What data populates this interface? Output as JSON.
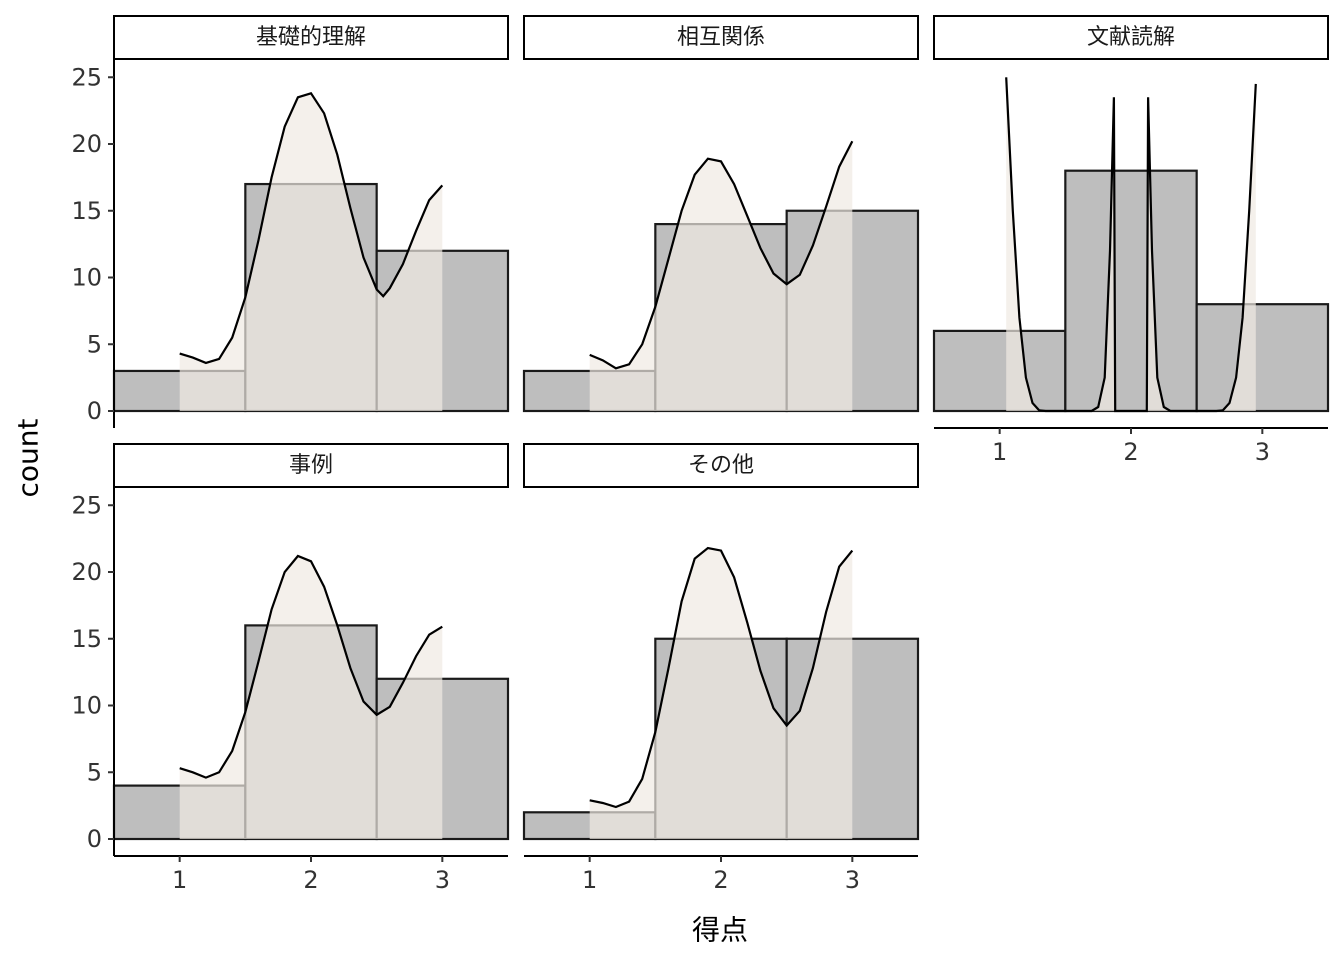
{
  "chart_data": {
    "type": "bar",
    "layout": "faceted histogram with density curves",
    "xlabel": "得点",
    "ylabel": "count",
    "x_breaks": [
      1,
      2,
      3
    ],
    "y_breaks": [
      0,
      5,
      10,
      15,
      20,
      25
    ],
    "xlim": [
      0.5,
      3.5
    ],
    "ylim": [
      0,
      25
    ],
    "colors": {
      "bar_fill": "#bebebe",
      "bar_outline": "#1a1a1a",
      "density_fill": "#efeae2",
      "density_line": "#000000"
    },
    "facets": [
      {
        "label": "基礎的理解",
        "bins": [
          {
            "x": 1,
            "count": 3
          },
          {
            "x": 2,
            "count": 17
          },
          {
            "x": 3,
            "count": 12
          }
        ],
        "density": [
          [
            1.0,
            4.3
          ],
          [
            1.1,
            4.0
          ],
          [
            1.2,
            3.6
          ],
          [
            1.3,
            3.9
          ],
          [
            1.4,
            5.5
          ],
          [
            1.5,
            8.5
          ],
          [
            1.6,
            12.8
          ],
          [
            1.7,
            17.5
          ],
          [
            1.8,
            21.3
          ],
          [
            1.9,
            23.5
          ],
          [
            2.0,
            23.8
          ],
          [
            2.1,
            22.3
          ],
          [
            2.2,
            19.2
          ],
          [
            2.3,
            15.2
          ],
          [
            2.4,
            11.5
          ],
          [
            2.5,
            9.1
          ],
          [
            2.55,
            8.6
          ],
          [
            2.6,
            9.2
          ],
          [
            2.7,
            11.0
          ],
          [
            2.8,
            13.5
          ],
          [
            2.9,
            15.8
          ],
          [
            3.0,
            16.9
          ]
        ]
      },
      {
        "label": "相互関係",
        "bins": [
          {
            "x": 1,
            "count": 3
          },
          {
            "x": 2,
            "count": 14
          },
          {
            "x": 3,
            "count": 15
          }
        ],
        "density": [
          [
            1.0,
            4.2
          ],
          [
            1.1,
            3.8
          ],
          [
            1.2,
            3.2
          ],
          [
            1.3,
            3.5
          ],
          [
            1.4,
            5.0
          ],
          [
            1.5,
            7.8
          ],
          [
            1.6,
            11.4
          ],
          [
            1.7,
            15.0
          ],
          [
            1.8,
            17.7
          ],
          [
            1.9,
            18.9
          ],
          [
            2.0,
            18.7
          ],
          [
            2.1,
            17.0
          ],
          [
            2.2,
            14.6
          ],
          [
            2.3,
            12.2
          ],
          [
            2.4,
            10.3
          ],
          [
            2.5,
            9.5
          ],
          [
            2.6,
            10.2
          ],
          [
            2.7,
            12.4
          ],
          [
            2.8,
            15.3
          ],
          [
            2.9,
            18.3
          ],
          [
            3.0,
            20.2
          ]
        ]
      },
      {
        "label": "文献読解",
        "bins": [
          {
            "x": 1,
            "count": 6
          },
          {
            "x": 2,
            "count": 18
          },
          {
            "x": 3,
            "count": 8
          }
        ],
        "density": [
          [
            1.05,
            25.0
          ],
          [
            1.1,
            15.0
          ],
          [
            1.15,
            7.0
          ],
          [
            1.2,
            2.5
          ],
          [
            1.25,
            0.6
          ],
          [
            1.3,
            0.05
          ],
          [
            1.35,
            0.0
          ],
          [
            1.7,
            0.0
          ],
          [
            1.75,
            0.3
          ],
          [
            1.8,
            2.5
          ],
          [
            1.84,
            12.0
          ],
          [
            1.87,
            23.5
          ],
          [
            1.88,
            0.0
          ],
          [
            2.12,
            0.0
          ],
          [
            2.13,
            23.5
          ],
          [
            2.16,
            12.0
          ],
          [
            2.2,
            2.5
          ],
          [
            2.25,
            0.3
          ],
          [
            2.3,
            0.0
          ],
          [
            2.65,
            0.0
          ],
          [
            2.7,
            0.05
          ],
          [
            2.75,
            0.6
          ],
          [
            2.8,
            2.5
          ],
          [
            2.85,
            7.0
          ],
          [
            2.9,
            15.0
          ],
          [
            2.95,
            24.5
          ]
        ]
      },
      {
        "label": "事例",
        "bins": [
          {
            "x": 1,
            "count": 4
          },
          {
            "x": 2,
            "count": 16
          },
          {
            "x": 3,
            "count": 12
          }
        ],
        "density": [
          [
            1.0,
            5.3
          ],
          [
            1.1,
            5.0
          ],
          [
            1.2,
            4.6
          ],
          [
            1.3,
            5.0
          ],
          [
            1.4,
            6.6
          ],
          [
            1.5,
            9.5
          ],
          [
            1.6,
            13.3
          ],
          [
            1.7,
            17.2
          ],
          [
            1.8,
            20.0
          ],
          [
            1.9,
            21.2
          ],
          [
            2.0,
            20.8
          ],
          [
            2.1,
            18.9
          ],
          [
            2.2,
            16.0
          ],
          [
            2.3,
            12.8
          ],
          [
            2.4,
            10.3
          ],
          [
            2.5,
            9.3
          ],
          [
            2.6,
            9.9
          ],
          [
            2.7,
            11.7
          ],
          [
            2.8,
            13.7
          ],
          [
            2.9,
            15.3
          ],
          [
            3.0,
            15.9
          ]
        ]
      },
      {
        "label": "その他",
        "bins": [
          {
            "x": 1,
            "count": 2
          },
          {
            "x": 2,
            "count": 15
          },
          {
            "x": 3,
            "count": 15
          }
        ],
        "density": [
          [
            1.0,
            2.9
          ],
          [
            1.1,
            2.7
          ],
          [
            1.2,
            2.4
          ],
          [
            1.3,
            2.8
          ],
          [
            1.4,
            4.5
          ],
          [
            1.5,
            8.0
          ],
          [
            1.6,
            12.8
          ],
          [
            1.7,
            17.8
          ],
          [
            1.8,
            21.0
          ],
          [
            1.9,
            21.8
          ],
          [
            2.0,
            21.6
          ],
          [
            2.1,
            19.6
          ],
          [
            2.2,
            16.2
          ],
          [
            2.3,
            12.6
          ],
          [
            2.4,
            9.8
          ],
          [
            2.5,
            8.5
          ],
          [
            2.6,
            9.6
          ],
          [
            2.7,
            12.8
          ],
          [
            2.8,
            17.0
          ],
          [
            2.9,
            20.4
          ],
          [
            3.0,
            21.6
          ]
        ]
      }
    ]
  }
}
